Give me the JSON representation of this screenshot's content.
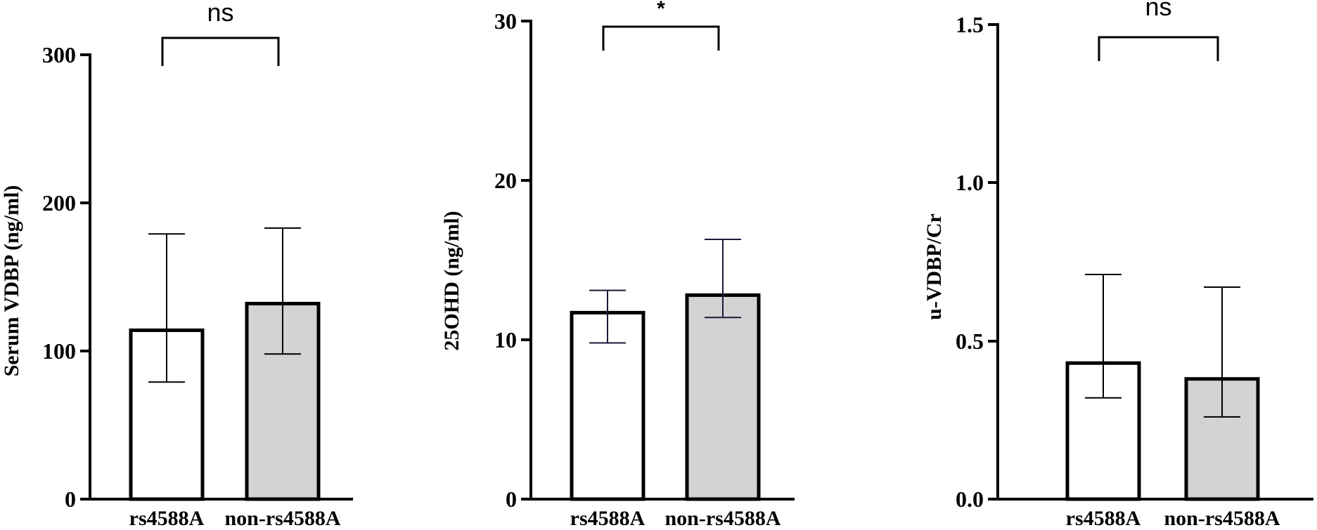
{
  "chart_data": [
    {
      "type": "bar",
      "categories": [
        "rs4588A",
        "non-rs4588A"
      ],
      "values": [
        114,
        132
      ],
      "error_low": [
        79,
        98
      ],
      "error_high": [
        179,
        183
      ],
      "ylabel": "Serum VDBP (ng/ml)",
      "ylim": [
        0,
        300
      ],
      "yticks": [
        "0",
        "100",
        "200",
        "300"
      ],
      "bar_colors": [
        "#ffffff",
        "#d3d3d3"
      ],
      "error_color": "#000000",
      "significance": "ns"
    },
    {
      "type": "bar",
      "categories": [
        "rs4588A",
        "non-rs4588A"
      ],
      "values": [
        11.7,
        12.8
      ],
      "error_low": [
        9.8,
        11.4
      ],
      "error_high": [
        13.1,
        16.3
      ],
      "ylabel": "25OHD (ng/ml)",
      "ylim": [
        0,
        30
      ],
      "yticks": [
        "0",
        "10",
        "20",
        "30"
      ],
      "bar_colors": [
        "#ffffff",
        "#d3d3d3"
      ],
      "error_color": "#1a1a3a",
      "significance": "*"
    },
    {
      "type": "bar",
      "categories": [
        "rs4588A",
        "non-rs4588A"
      ],
      "values": [
        0.43,
        0.38
      ],
      "error_low": [
        0.32,
        0.26
      ],
      "error_high": [
        0.71,
        0.67
      ],
      "ylabel": "u-VDBP/Cr",
      "ylim": [
        0,
        1.5
      ],
      "yticks": [
        "0.0",
        "0.5",
        "1.0",
        "1.5"
      ],
      "bar_colors": [
        "#ffffff",
        "#d3d3d3"
      ],
      "error_color": "#000000",
      "significance": "ns"
    }
  ]
}
